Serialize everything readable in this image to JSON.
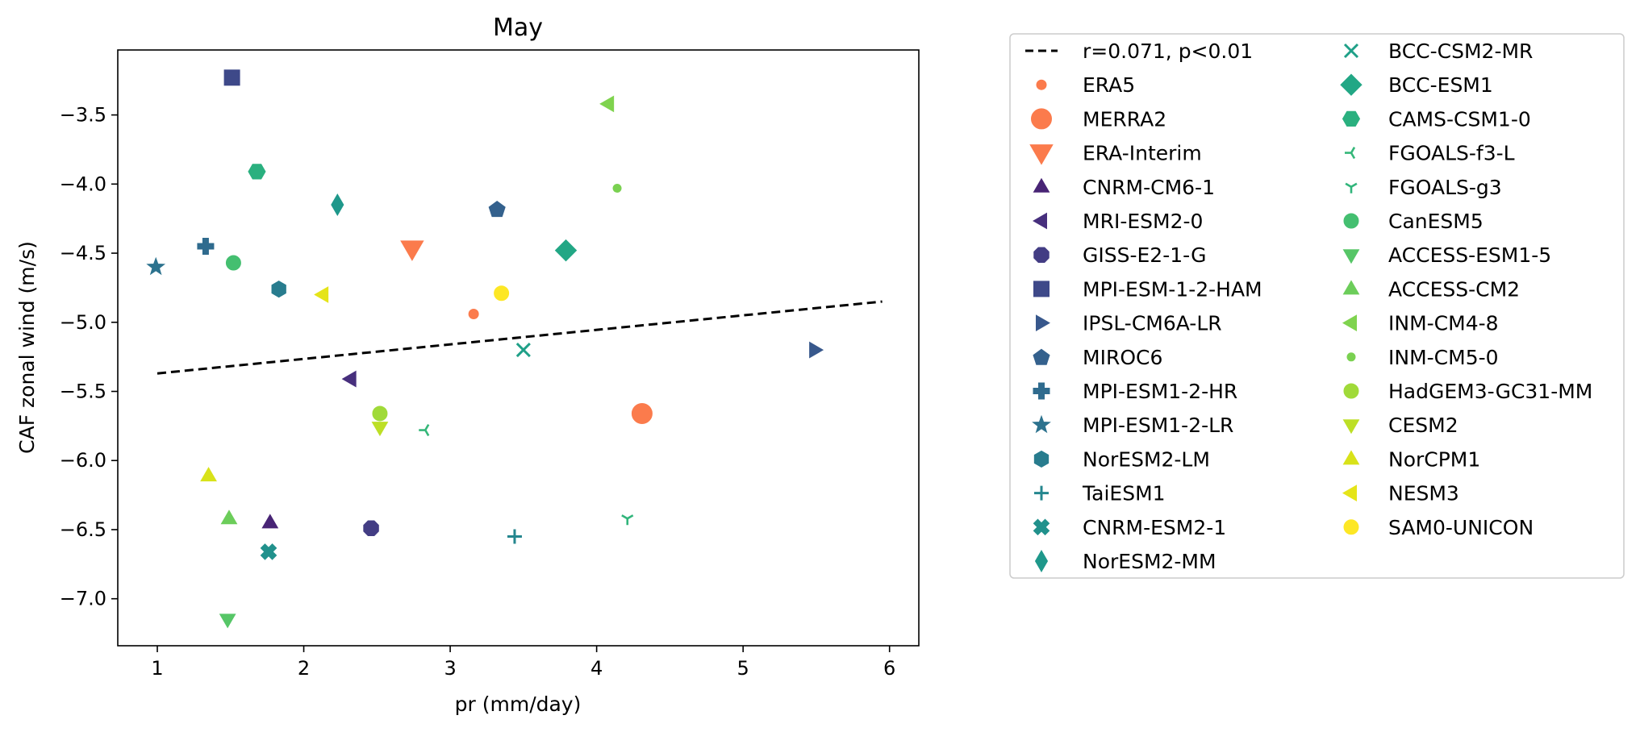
{
  "chart_data": {
    "type": "scatter",
    "title": "May",
    "xlabel": "pr (mm/day)",
    "ylabel": "CAF zonal wind (m/s)",
    "xlim": [
      0.73,
      6.2
    ],
    "ylim": [
      -7.34,
      -3.03
    ],
    "xticks": [
      "1",
      "2",
      "3",
      "4",
      "5",
      "6"
    ],
    "yticks": [
      "−3.5",
      "−4.0",
      "−4.5",
      "−5.0",
      "−5.5",
      "−6.0",
      "−6.5",
      "−7.0"
    ],
    "xtick_values": [
      1,
      2,
      3,
      4,
      5,
      6
    ],
    "ytick_values": [
      -3.5,
      -4.0,
      -4.5,
      -5.0,
      -5.5,
      -6.0,
      -6.5,
      -7.0
    ],
    "grid": false,
    "legend_position": "outside-right",
    "regression": {
      "label": "r=0.071, p<0.01",
      "x": [
        1,
        5.95
      ],
      "y": [
        -5.37,
        -4.85
      ],
      "style": "dashed",
      "color": "#000000"
    },
    "series": [
      {
        "name": "ERA5",
        "marker": "circle-small",
        "color": "#fb7b4c",
        "x": 3.16,
        "y": -4.94
      },
      {
        "name": "MERRA2",
        "marker": "circle-large",
        "color": "#fb7b4c",
        "x": 4.31,
        "y": -5.66
      },
      {
        "name": "ERA-Interim",
        "marker": "triangle-down-large",
        "color": "#fb7b4c",
        "x": 2.74,
        "y": -4.47
      },
      {
        "name": "CNRM-CM6-1",
        "marker": "triangle-up",
        "color": "#482475",
        "x": 1.77,
        "y": -6.45
      },
      {
        "name": "MRI-ESM2-0",
        "marker": "triangle-left",
        "color": "#472f7d",
        "x": 2.32,
        "y": -5.41
      },
      {
        "name": "GISS-E2-1-G",
        "marker": "octagon",
        "color": "#433d84",
        "x": 2.46,
        "y": -6.49
      },
      {
        "name": "MPI-ESM-1-2-HAM",
        "marker": "square",
        "color": "#3e4989",
        "x": 1.51,
        "y": -3.23
      },
      {
        "name": "IPSL-CM6A-LR",
        "marker": "triangle-right",
        "color": "#38588c",
        "x": 5.49,
        "y": -5.2
      },
      {
        "name": "MIROC6",
        "marker": "pentagon",
        "color": "#34618d",
        "x": 3.32,
        "y": -4.18
      },
      {
        "name": "MPI-ESM1-2-HR",
        "marker": "plus-filled",
        "color": "#2f6b8e",
        "x": 1.33,
        "y": -4.45
      },
      {
        "name": "MPI-ESM1-2-LR",
        "marker": "star",
        "color": "#2c728e",
        "x": 0.99,
        "y": -4.6
      },
      {
        "name": "NorESM2-LM",
        "marker": "hexagon",
        "color": "#287c8e",
        "x": 1.83,
        "y": -4.76
      },
      {
        "name": "TaiESM1",
        "marker": "plus",
        "color": "#24868e",
        "x": 3.44,
        "y": -6.55
      },
      {
        "name": "CNRM-ESM2-1",
        "marker": "x-filled",
        "color": "#21918c",
        "x": 1.76,
        "y": -6.66
      },
      {
        "name": "NorESM2-MM",
        "marker": "thin-diamond",
        "color": "#1f988b",
        "x": 2.23,
        "y": -4.15
      },
      {
        "name": "BCC-CSM2-MR",
        "marker": "x",
        "color": "#1fa088",
        "x": 3.5,
        "y": -5.2
      },
      {
        "name": "BCC-ESM1",
        "marker": "diamond",
        "color": "#22a785",
        "x": 3.79,
        "y": -4.48
      },
      {
        "name": "CAMS-CSM1-0",
        "marker": "hexagon-flat",
        "color": "#2ab07f",
        "x": 1.68,
        "y": -3.91
      },
      {
        "name": "FGOALS-f3-L",
        "marker": "tri-left",
        "color": "#35b779",
        "x": 2.83,
        "y": -5.78
      },
      {
        "name": "FGOALS-g3",
        "marker": "tri-down",
        "color": "#31b57b",
        "x": 4.21,
        "y": -6.42
      },
      {
        "name": "CanESM5",
        "marker": "circle",
        "color": "#44bf70",
        "x": 1.52,
        "y": -4.57
      },
      {
        "name": "ACCESS-ESM1-5",
        "marker": "triangle-down",
        "color": "#56c667",
        "x": 1.48,
        "y": -7.15
      },
      {
        "name": "ACCESS-CM2",
        "marker": "triangle-up",
        "color": "#6ccd5a",
        "x": 1.49,
        "y": -6.42
      },
      {
        "name": "INM-CM4-8",
        "marker": "triangle-left",
        "color": "#7fd34e",
        "x": 4.08,
        "y": -3.42
      },
      {
        "name": "INM-CM5-0",
        "marker": "point",
        "color": "#7ad151",
        "x": 4.14,
        "y": -4.03
      },
      {
        "name": "HadGEM3-GC31-MM",
        "marker": "circle",
        "color": "#a0da39",
        "x": 2.52,
        "y": -5.66
      },
      {
        "name": "CESM2",
        "marker": "triangle-down",
        "color": "#bddf26",
        "x": 2.52,
        "y": -5.76
      },
      {
        "name": "NorCPM1",
        "marker": "triangle-up",
        "color": "#d8e219",
        "x": 1.35,
        "y": -6.11
      },
      {
        "name": "NESM3",
        "marker": "triangle-left",
        "color": "#e5e419",
        "x": 2.13,
        "y": -4.8
      },
      {
        "name": "SAM0-UNICON",
        "marker": "circle",
        "color": "#fde725",
        "x": 3.35,
        "y": -4.79
      }
    ]
  }
}
